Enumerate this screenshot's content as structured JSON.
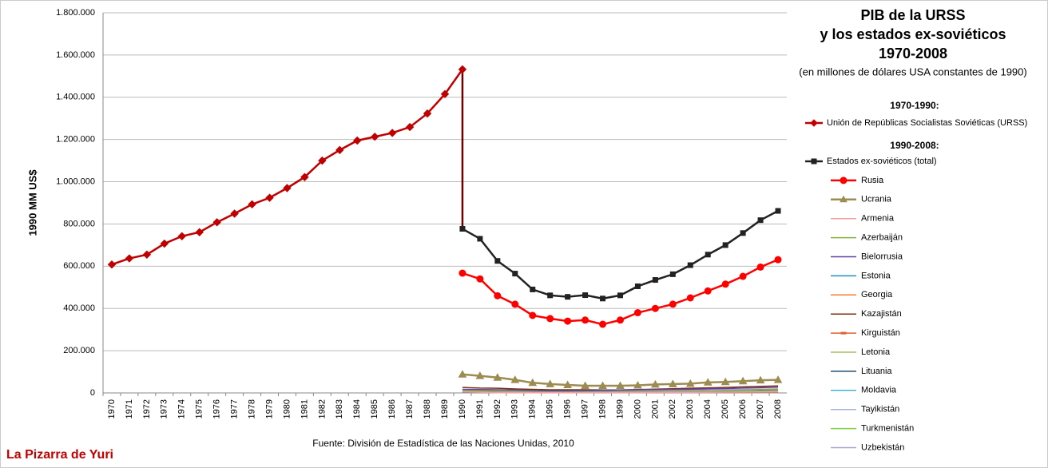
{
  "chart_data": {
    "type": "line",
    "title_lines": [
      "PIB de la URSS",
      "y los estados ex-soviéticos",
      "1970-2008"
    ],
    "subtitle": "(en millones de dólares USA constantes de 1990)",
    "y_label": "1990 MM US$",
    "source": "Fuente: División de Estadística de las Naciones Unidas, 2010",
    "brand": "La Pizarra de Yuri",
    "legend_headers": [
      "1970-1990:",
      "1990-2008:"
    ],
    "grid": true,
    "ylim": [
      0,
      1800000
    ],
    "yticks": [
      0,
      {
        "value": 200000,
        "label": "200.000"
      },
      {
        "value": 400000,
        "label": "400.000"
      },
      {
        "value": 600000,
        "label": "600.000"
      },
      {
        "value": 800000,
        "label": "800.000"
      },
      {
        "value": 1000000,
        "label": "1.000.000"
      },
      {
        "value": 1200000,
        "label": "1.200.000"
      },
      {
        "value": 1400000,
        "label": "1.400.000"
      },
      {
        "value": 1600000,
        "label": "1.600.000"
      },
      {
        "value": 1800000,
        "label": "1.800.000"
      }
    ],
    "categories": [
      "1970",
      "1971",
      "1972",
      "1973",
      "1974",
      "1975",
      "1976",
      "1977",
      "1978",
      "1979",
      "1980",
      "1981",
      "1982",
      "1983",
      "1984",
      "1985",
      "1986",
      "1987",
      "1988",
      "1989",
      "1990",
      "1991",
      "1992",
      "1993",
      "1994",
      "1995",
      "1996",
      "1997",
      "1998",
      "1999",
      "2000",
      "2001",
      "2002",
      "2003",
      "2004",
      "2005",
      "2006",
      "2007",
      "2008"
    ],
    "series": [
      {
        "name": "Unión de Repúblicas Socialistas Soviéticas (URSS)",
        "color": "#c00000",
        "marker": "diamond",
        "width": 2.5,
        "values": [
          608000,
          637000,
          655000,
          707000,
          742000,
          761000,
          808000,
          849000,
          893000,
          924000,
          970000,
          1022000,
          1100000,
          1150000,
          1195000,
          1213000,
          1231000,
          1259000,
          1323000,
          1415000,
          1532000,
          null,
          null,
          null,
          null,
          null,
          null,
          null,
          null,
          null,
          null,
          null,
          null,
          null,
          null,
          null,
          null,
          null,
          null
        ]
      },
      {
        "name": "Estados ex-soviéticos (total)",
        "color": "#222222",
        "marker": "square",
        "width": 2.5,
        "values": [
          null,
          null,
          null,
          null,
          null,
          null,
          null,
          null,
          null,
          null,
          null,
          null,
          null,
          null,
          null,
          null,
          null,
          null,
          null,
          null,
          777000,
          730000,
          625000,
          565000,
          490000,
          462000,
          455000,
          463000,
          447000,
          462000,
          505000,
          535000,
          562000,
          605000,
          655000,
          700000,
          757000,
          818000,
          862000
        ]
      },
      {
        "name": "Rusia",
        "color": "#ff0000",
        "marker": "circle",
        "width": 2.5,
        "values": [
          null,
          null,
          null,
          null,
          null,
          null,
          null,
          null,
          null,
          null,
          null,
          null,
          null,
          null,
          null,
          null,
          null,
          null,
          null,
          null,
          567000,
          540000,
          460000,
          420000,
          367000,
          352000,
          340000,
          345000,
          325000,
          345000,
          380000,
          400000,
          420000,
          450000,
          483000,
          515000,
          552000,
          596000,
          631000
        ]
      },
      {
        "name": "Ucrania",
        "color": "#9c8c50",
        "marker": "triangle",
        "width": 2.5,
        "values": [
          null,
          null,
          null,
          null,
          null,
          null,
          null,
          null,
          null,
          null,
          null,
          null,
          null,
          null,
          null,
          null,
          null,
          null,
          null,
          null,
          88000,
          81000,
          73000,
          62000,
          48000,
          42000,
          38000,
          34000,
          34000,
          34000,
          36000,
          40000,
          42000,
          44000,
          50000,
          52000,
          56000,
          60000,
          62000
        ]
      },
      {
        "name": "Armenia",
        "color": "#f4a0a0",
        "marker": "none",
        "width": 1.5,
        "values": [
          null,
          null,
          null,
          null,
          null,
          null,
          null,
          null,
          null,
          null,
          null,
          null,
          null,
          null,
          null,
          null,
          null,
          null,
          null,
          null,
          5000,
          3200,
          1500,
          1300,
          1400,
          1500,
          1600,
          1700,
          1900,
          2000,
          2100,
          2300,
          2600,
          2900,
          3200,
          3700,
          4200,
          4700,
          5000
        ]
      },
      {
        "name": "Azerbaiján",
        "color": "#8ab040",
        "marker": "none",
        "width": 1.5,
        "values": [
          null,
          null,
          null,
          null,
          null,
          null,
          null,
          null,
          null,
          null,
          null,
          null,
          null,
          null,
          null,
          null,
          null,
          null,
          null,
          null,
          9000,
          9000,
          7000,
          5500,
          4500,
          4000,
          4000,
          4200,
          4600,
          5000,
          5600,
          6100,
          6700,
          7400,
          8200,
          10300,
          13000,
          16000,
          17000
        ]
      },
      {
        "name": "Bielorrusia",
        "color": "#6040a0",
        "marker": "none",
        "width": 1.5,
        "values": [
          null,
          null,
          null,
          null,
          null,
          null,
          null,
          null,
          null,
          null,
          null,
          null,
          null,
          null,
          null,
          null,
          null,
          null,
          null,
          null,
          17000,
          16000,
          15000,
          14000,
          12000,
          11000,
          11000,
          12000,
          13000,
          14000,
          15000,
          16000,
          16500,
          17500,
          19500,
          21000,
          23000,
          25000,
          27500
        ]
      },
      {
        "name": "Estonia",
        "color": "#2090c0",
        "marker": "none",
        "width": 1.5,
        "values": [
          null,
          null,
          null,
          null,
          null,
          null,
          null,
          null,
          null,
          null,
          null,
          null,
          null,
          null,
          null,
          null,
          null,
          null,
          null,
          null,
          4000,
          3500,
          3000,
          2700,
          2700,
          2800,
          2900,
          3200,
          3400,
          3400,
          3700,
          3900,
          4200,
          4500,
          4800,
          5300,
          5800,
          6200,
          5900
        ]
      },
      {
        "name": "Georgia",
        "color": "#f08030",
        "marker": "none",
        "width": 1.5,
        "values": [
          null,
          null,
          null,
          null,
          null,
          null,
          null,
          null,
          null,
          null,
          null,
          null,
          null,
          null,
          null,
          null,
          null,
          null,
          null,
          null,
          8000,
          6800,
          3700,
          2600,
          2300,
          2300,
          2600,
          2900,
          3000,
          3100,
          3100,
          3300,
          3500,
          3900,
          4100,
          4500,
          4900,
          5500,
          5600
        ]
      },
      {
        "name": "Kazajistán",
        "color": "#803010",
        "marker": "none",
        "width": 1.5,
        "values": [
          null,
          null,
          null,
          null,
          null,
          null,
          null,
          null,
          null,
          null,
          null,
          null,
          null,
          null,
          null,
          null,
          null,
          null,
          null,
          null,
          26000,
          23000,
          22000,
          19000,
          17000,
          15000,
          15000,
          15000,
          14000,
          14000,
          16000,
          18000,
          20000,
          22000,
          24000,
          26000,
          29000,
          31000,
          33000
        ]
      },
      {
        "name": "Kirguistán",
        "color": "#e06030",
        "marker": "dash",
        "width": 1.5,
        "values": [
          null,
          null,
          null,
          null,
          null,
          null,
          null,
          null,
          null,
          null,
          null,
          null,
          null,
          null,
          null,
          null,
          null,
          null,
          null,
          null,
          3000,
          2800,
          2400,
          2000,
          1600,
          1500,
          1600,
          1800,
          1800,
          1900,
          2000,
          2100,
          2100,
          2200,
          2400,
          2400,
          2400,
          2600,
          2800
        ]
      },
      {
        "name": "Letonia",
        "color": "#a0c060",
        "marker": "none",
        "width": 1.5,
        "values": [
          null,
          null,
          null,
          null,
          null,
          null,
          null,
          null,
          null,
          null,
          null,
          null,
          null,
          null,
          null,
          null,
          null,
          null,
          null,
          null,
          6500,
          6700,
          4700,
          4000,
          4000,
          3900,
          4000,
          4300,
          4500,
          4700,
          5000,
          5400,
          5800,
          6200,
          6800,
          7500,
          8300,
          9100,
          8800
        ]
      },
      {
        "name": "Lituania",
        "color": "#205070",
        "marker": "none",
        "width": 1.5,
        "values": [
          null,
          null,
          null,
          null,
          null,
          null,
          null,
          null,
          null,
          null,
          null,
          null,
          null,
          null,
          null,
          null,
          null,
          null,
          null,
          null,
          9000,
          8500,
          6500,
          5500,
          5000,
          5200,
          5400,
          5800,
          6200,
          6100,
          6300,
          6700,
          7000,
          7700,
          8300,
          8900,
          9600,
          10400,
          10700
        ]
      },
      {
        "name": "Moldavia",
        "color": "#40b0d0",
        "marker": "none",
        "width": 1.5,
        "values": [
          null,
          null,
          null,
          null,
          null,
          null,
          null,
          null,
          null,
          null,
          null,
          null,
          null,
          null,
          null,
          null,
          null,
          null,
          null,
          null,
          4000,
          3300,
          2300,
          2300,
          1600,
          1600,
          1500,
          1500,
          1400,
          1400,
          1400,
          1500,
          1600,
          1700,
          1800,
          1900,
          2000,
          2100,
          2300
        ]
      },
      {
        "name": "Tayikistán",
        "color": "#a0b0e0",
        "marker": "none",
        "width": 1.5,
        "values": [
          null,
          null,
          null,
          null,
          null,
          null,
          null,
          null,
          null,
          null,
          null,
          null,
          null,
          null,
          null,
          null,
          null,
          null,
          null,
          null,
          3500,
          3200,
          2200,
          1800,
          1400,
          1200,
          1000,
          1000,
          1000,
          1100,
          1200,
          1300,
          1400,
          1500,
          1600,
          1700,
          1800,
          2000,
          2100
        ]
      },
      {
        "name": "Turkmenistán",
        "color": "#80d040",
        "marker": "none",
        "width": 1.5,
        "values": [
          null,
          null,
          null,
          null,
          null,
          null,
          null,
          null,
          null,
          null,
          null,
          null,
          null,
          null,
          null,
          null,
          null,
          null,
          null,
          null,
          7000,
          6700,
          6300,
          5300,
          4400,
          4100,
          3800,
          3000,
          3200,
          3700,
          4400,
          5100,
          5500,
          6300,
          7000,
          7700,
          8500,
          9500,
          10500
        ]
      },
      {
        "name": "Uzbekistán",
        "color": "#b0a0d0",
        "marker": "none",
        "width": 1.5,
        "values": [
          null,
          null,
          null,
          null,
          null,
          null,
          null,
          null,
          null,
          null,
          null,
          null,
          null,
          null,
          null,
          null,
          null,
          null,
          null,
          null,
          13000,
          13000,
          11500,
          11500,
          11000,
          10000,
          10000,
          10500,
          11000,
          11500,
          12000,
          12500,
          13000,
          13500,
          14500,
          15500,
          16500,
          18000,
          19500
        ]
      }
    ]
  }
}
